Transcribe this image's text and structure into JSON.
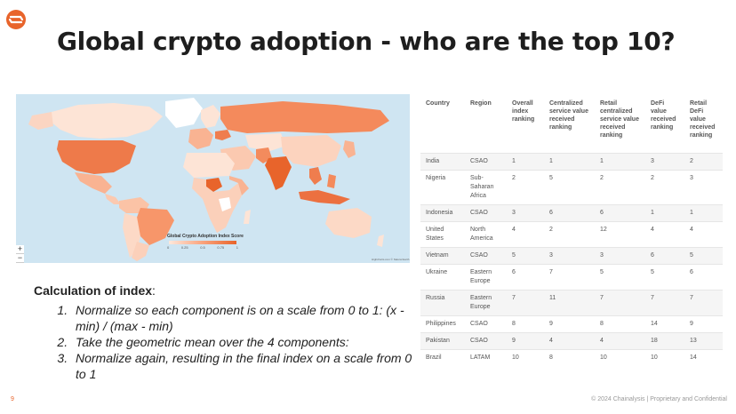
{
  "title": "Global crypto adoption - who are the top 10?",
  "colors": {
    "accent": "#e8642b",
    "map_ocean": "#cfe5f2",
    "map_light": "#fde8dc",
    "map_mid": "#f9a37d",
    "map_dark": "#e8642b"
  },
  "map": {
    "legend_title": "Global Crypto Adoption Index Score",
    "legend_ticks": [
      "0",
      "0.25",
      "0.5",
      "0.75",
      "1"
    ],
    "zoom_in": "+",
    "zoom_out": "−",
    "attribution": "Highcharts.com © Natural Earth"
  },
  "calculation": {
    "heading": "Calculation of index",
    "colon": ":",
    "steps": [
      "Normalize so each component is on a scale from 0 to 1: (x - min) / (max - min)",
      "Take the geometric mean over the 4 components:",
      "Normalize again, resulting in the final index on a scale from 0 to 1"
    ]
  },
  "table": {
    "headers": [
      "Country",
      "Region",
      "Overall index ranking",
      "Centralized service value received ranking",
      "Retail centralized service value received ranking",
      "DeFi value received ranking",
      "Retail DeFi value received ranking"
    ],
    "rows": [
      [
        "India",
        "CSAO",
        "1",
        "1",
        "1",
        "3",
        "2"
      ],
      [
        "Nigeria",
        "Sub-Saharan Africa",
        "2",
        "5",
        "2",
        "2",
        "3"
      ],
      [
        "Indonesia",
        "CSAO",
        "3",
        "6",
        "6",
        "1",
        "1"
      ],
      [
        "United States",
        "North America",
        "4",
        "2",
        "12",
        "4",
        "4"
      ],
      [
        "Vietnam",
        "CSAO",
        "5",
        "3",
        "3",
        "6",
        "5"
      ],
      [
        "Ukraine",
        "Eastern Europe",
        "6",
        "7",
        "5",
        "5",
        "6"
      ],
      [
        "Russia",
        "Eastern Europe",
        "7",
        "11",
        "7",
        "7",
        "7"
      ],
      [
        "Philippines",
        "CSAO",
        "8",
        "9",
        "8",
        "14",
        "9"
      ],
      [
        "Pakistan",
        "CSAO",
        "9",
        "4",
        "4",
        "18",
        "13"
      ],
      [
        "Brazil",
        "LATAM",
        "10",
        "8",
        "10",
        "10",
        "14"
      ]
    ]
  },
  "footer": {
    "page_number": "9",
    "copyright": "© 2024 Chainalysis | Proprietary and Confidential"
  }
}
